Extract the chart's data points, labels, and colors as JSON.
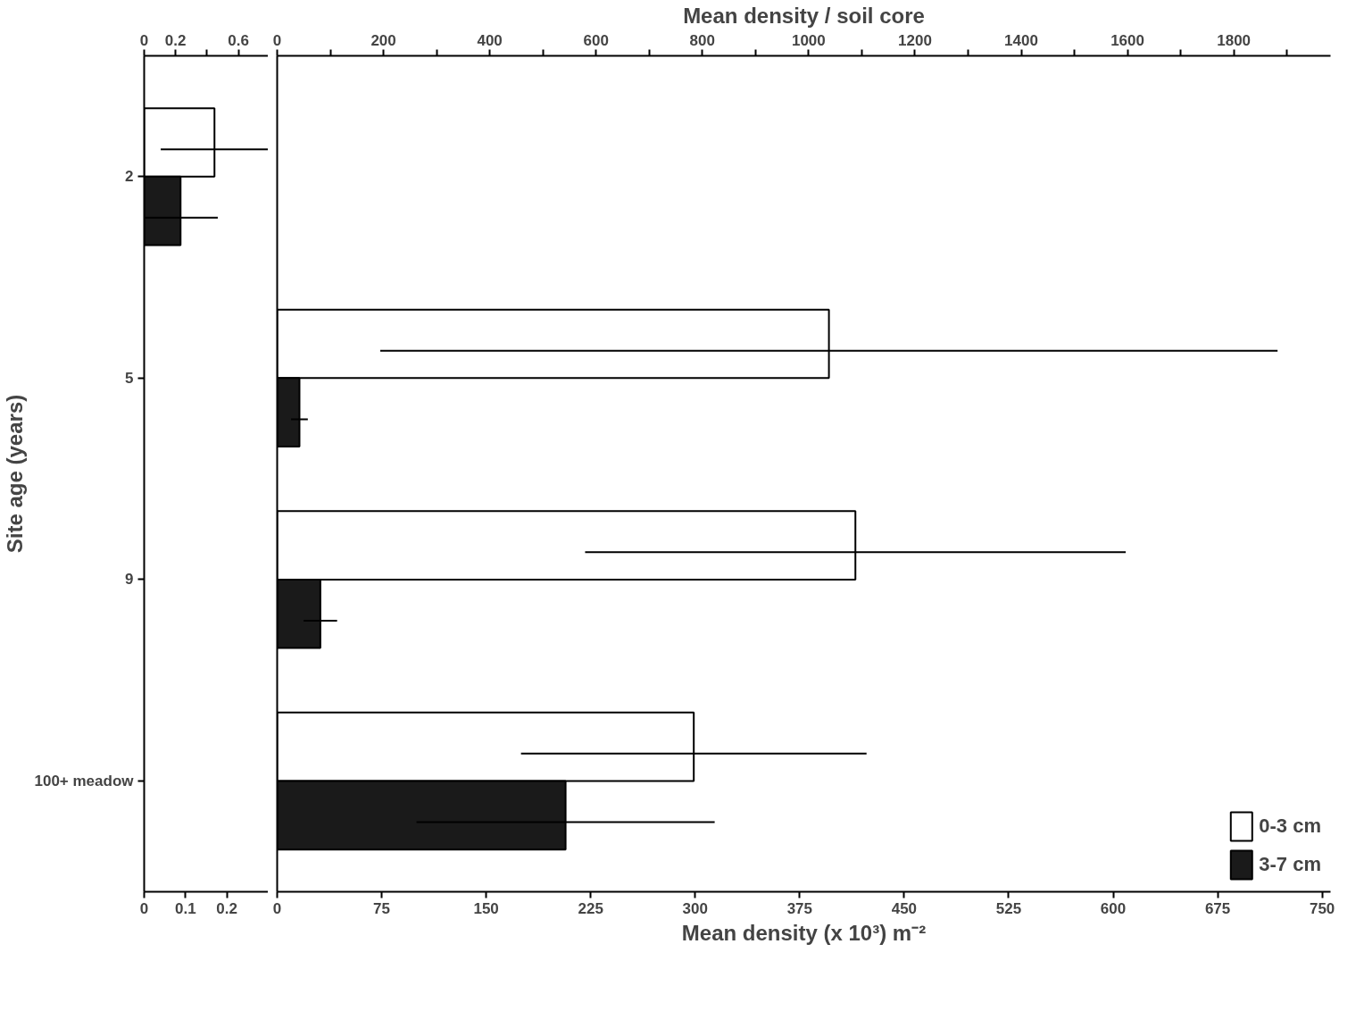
{
  "chart_data": [
    {
      "type": "bar",
      "orientation": "horizontal",
      "ylabel": "Site age (years)",
      "categories": [
        "2",
        "5",
        "9",
        "100+ meadow"
      ],
      "series": [
        {
          "color": "#ffffff",
          "values": [
            0.17,
            null,
            null,
            null
          ],
          "errors": [
            0.13,
            null,
            null,
            null
          ]
        },
        {
          "color": "#1a1a1a",
          "values": [
            0.088,
            null,
            null,
            null
          ],
          "errors": [
            0.09,
            null,
            null,
            null
          ]
        }
      ],
      "xlim": [
        0,
        0.3
      ],
      "xticks": [
        0,
        0.1,
        0.2
      ],
      "x2lim": [
        0,
        0.79
      ],
      "x2ticks": [
        0,
        0.2,
        {
          "value": 0.4,
          "label": null
        },
        0.6
      ],
      "grid": false,
      "legend": false
    },
    {
      "type": "bar",
      "orientation": "horizontal",
      "xlabel": "Mean density (x 10³) m⁻²",
      "x2label": "Mean density / soil core",
      "categories": [
        null,
        null,
        null,
        null
      ],
      "series": [
        {
          "name": "0-3 cm",
          "color": "#ffffff",
          "values": [
            null,
            396,
            415,
            299
          ],
          "errors": [
            null,
            322,
            194,
            124
          ]
        },
        {
          "name": "3-7 cm",
          "color": "#1a1a1a",
          "values": [
            null,
            16,
            31,
            207
          ],
          "errors": [
            null,
            6,
            12,
            107
          ]
        }
      ],
      "xlim": [
        0,
        756
      ],
      "xticks": [
        0,
        75,
        150,
        225,
        300,
        375,
        450,
        525,
        600,
        675,
        750
      ],
      "x2lim": [
        0,
        1982
      ],
      "x2ticks": [
        0,
        {
          "value": 100,
          "label": null
        },
        200,
        {
          "value": 300,
          "label": null
        },
        400,
        {
          "value": 500,
          "label": null
        },
        600,
        {
          "value": 700,
          "label": null
        },
        800,
        {
          "value": 900,
          "label": null
        },
        1000,
        {
          "value": 1100,
          "label": null
        },
        1200,
        {
          "value": 1300,
          "label": null
        },
        1400,
        {
          "value": 1500,
          "label": null
        },
        1600,
        {
          "value": 1700,
          "label": null
        },
        1800,
        {
          "value": 1900,
          "label": null
        }
      ],
      "tick_labels": "x",
      "grid": false,
      "legend": "bottom right"
    }
  ]
}
